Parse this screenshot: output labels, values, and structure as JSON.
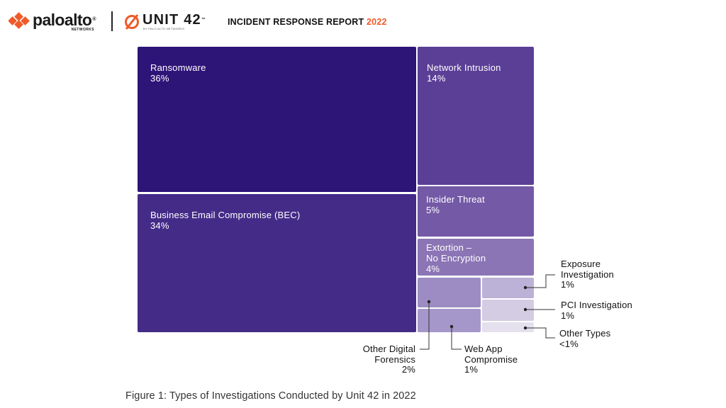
{
  "header": {
    "brand": "paloalto",
    "brand_sub": "NETWORKS",
    "unit_brand": "UNIT 42",
    "unit_sub": "BY PALO ALTO NETWORKS",
    "report_title": "INCIDENT RESPONSE REPORT",
    "report_year": "2022",
    "accent_color": "#ef5a29"
  },
  "chart_data": {
    "type": "treemap",
    "title": "",
    "items": [
      {
        "label": "Ransomware",
        "value_label": "36%",
        "value": 36,
        "color": "#2d1477"
      },
      {
        "label": "Business Email Compromise (BEC)",
        "value_label": "34%",
        "value": 34,
        "color": "#452b88"
      },
      {
        "label": "Network Intrusion",
        "value_label": "14%",
        "value": 14,
        "color": "#5b3f96"
      },
      {
        "label": "Insider Threat",
        "value_label": "5%",
        "value": 5,
        "color": "#7459a6"
      },
      {
        "label": "Extortion –\nNo Encryption",
        "value_label": "4%",
        "value": 4,
        "color": "#8b75b5"
      },
      {
        "label": "Other Digital\nForensics",
        "value_label": "2%",
        "value": 2,
        "color": "#9c8cc3"
      },
      {
        "label": "Web App\nCompromise",
        "value_label": "1%",
        "value": 1,
        "color": "#a597c9"
      },
      {
        "label": "Exposure\nInvestigation",
        "value_label": "1%",
        "value": 1,
        "color": "#bcb1d6"
      },
      {
        "label": "PCI Investigation",
        "value_label": "1%",
        "value": 1,
        "color": "#d3cce3"
      },
      {
        "label": "Other Types",
        "value_label": "<1%",
        "value": 0.5,
        "color": "#e4e0ee"
      }
    ]
  },
  "caption": "Figure 1: Types of Investigations Conducted by Unit 42 in 2022"
}
